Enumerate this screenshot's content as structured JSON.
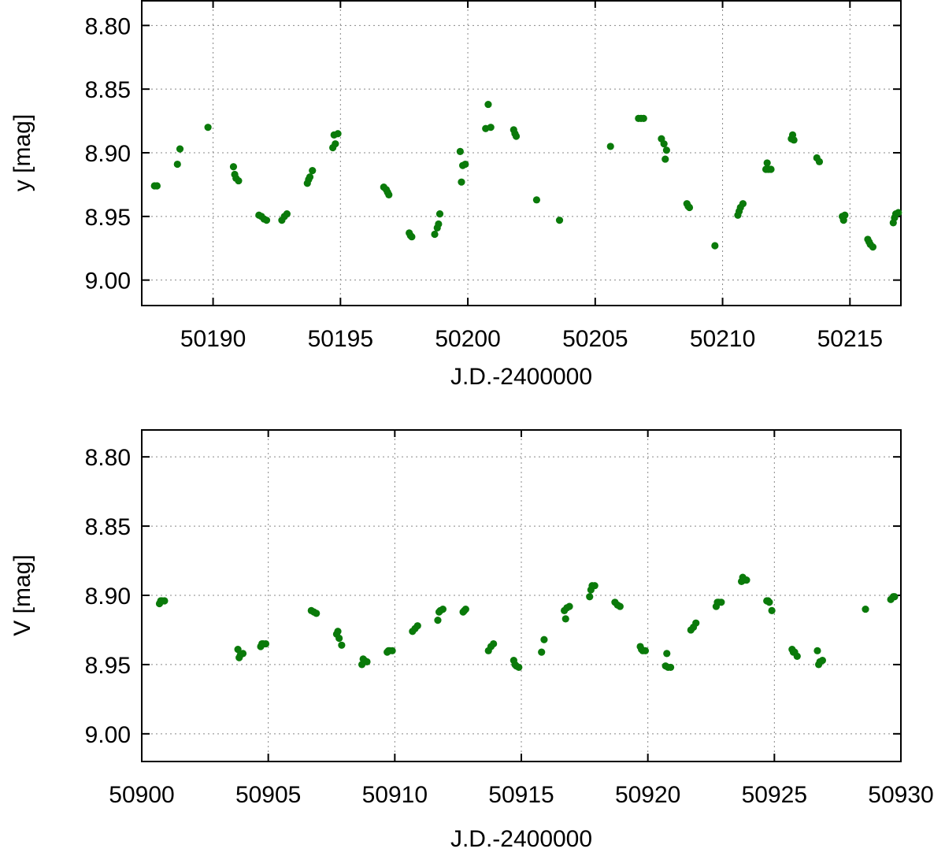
{
  "chart_data": [
    {
      "type": "scatter",
      "xlabel": "J.D.-2400000",
      "ylabel": "y [mag]",
      "xlim": [
        50187.2,
        50217.0
      ],
      "ylim": [
        9.02,
        8.78
      ],
      "y_inverted": true,
      "xticks": [
        50190,
        50195,
        50200,
        50205,
        50210,
        50215
      ],
      "yticks": [
        "8.80",
        "8.85",
        "8.90",
        "8.95",
        "9.00"
      ],
      "grid": true,
      "marker_color": "#0a7a0a",
      "series": [
        {
          "points": [
            [
              50187.7,
              8.926
            ],
            [
              50187.8,
              8.926
            ],
            [
              50188.6,
              8.909
            ],
            [
              50188.7,
              8.897
            ],
            [
              50189.8,
              8.88
            ],
            [
              50190.8,
              8.911
            ],
            [
              50190.85,
              8.917
            ],
            [
              50190.9,
              8.92
            ],
            [
              50191.0,
              8.922
            ],
            [
              50191.8,
              8.949
            ],
            [
              50191.9,
              8.95
            ],
            [
              50192.0,
              8.952
            ],
            [
              50192.1,
              8.953
            ],
            [
              50192.7,
              8.953
            ],
            [
              50192.8,
              8.95
            ],
            [
              50192.9,
              8.948
            ],
            [
              50193.7,
              8.924
            ],
            [
              50193.75,
              8.921
            ],
            [
              50193.8,
              8.919
            ],
            [
              50193.9,
              8.914
            ],
            [
              50194.7,
              8.896
            ],
            [
              50194.75,
              8.886
            ],
            [
              50194.8,
              8.893
            ],
            [
              50194.9,
              8.885
            ],
            [
              50196.7,
              8.927
            ],
            [
              50196.8,
              8.929
            ],
            [
              50196.85,
              8.931
            ],
            [
              50196.9,
              8.933
            ],
            [
              50197.7,
              8.963
            ],
            [
              50197.75,
              8.965
            ],
            [
              50197.8,
              8.966
            ],
            [
              50198.7,
              8.964
            ],
            [
              50198.8,
              8.959
            ],
            [
              50198.85,
              8.956
            ],
            [
              50198.9,
              8.948
            ],
            [
              50199.7,
              8.899
            ],
            [
              50199.75,
              8.923
            ],
            [
              50199.8,
              8.91
            ],
            [
              50199.9,
              8.909
            ],
            [
              50200.7,
              8.881
            ],
            [
              50200.8,
              8.862
            ],
            [
              50200.9,
              8.88
            ],
            [
              50201.8,
              8.882
            ],
            [
              50201.85,
              8.885
            ],
            [
              50201.9,
              8.887
            ],
            [
              50202.7,
              8.937
            ],
            [
              50203.6,
              8.953
            ],
            [
              50205.6,
              8.895
            ],
            [
              50206.7,
              8.873
            ],
            [
              50206.8,
              8.873
            ],
            [
              50206.9,
              8.873
            ],
            [
              50207.6,
              8.889
            ],
            [
              50207.7,
              8.893
            ],
            [
              50207.75,
              8.905
            ],
            [
              50207.8,
              8.898
            ],
            [
              50208.6,
              8.94
            ],
            [
              50208.65,
              8.942
            ],
            [
              50208.7,
              8.943
            ],
            [
              50209.7,
              8.973
            ],
            [
              50210.6,
              8.949
            ],
            [
              50210.65,
              8.946
            ],
            [
              50210.7,
              8.943
            ],
            [
              50210.8,
              8.94
            ],
            [
              50211.7,
              8.913
            ],
            [
              50211.75,
              8.908
            ],
            [
              50211.8,
              8.913
            ],
            [
              50211.9,
              8.913
            ],
            [
              50212.7,
              8.889
            ],
            [
              50212.75,
              8.886
            ],
            [
              50212.8,
              8.89
            ],
            [
              50213.7,
              8.904
            ],
            [
              50213.8,
              8.907
            ],
            [
              50214.7,
              8.95
            ],
            [
              50214.75,
              8.953
            ],
            [
              50214.8,
              8.949
            ],
            [
              50215.7,
              8.968
            ],
            [
              50215.75,
              8.97
            ],
            [
              50215.8,
              8.972
            ],
            [
              50215.9,
              8.974
            ],
            [
              50216.7,
              8.955
            ],
            [
              50216.75,
              8.951
            ],
            [
              50216.8,
              8.948
            ],
            [
              50216.9,
              8.947
            ]
          ]
        }
      ]
    },
    {
      "type": "scatter",
      "xlabel": "J.D.-2400000",
      "ylabel": "V [mag]",
      "xlim": [
        50900,
        50930
      ],
      "ylim": [
        9.02,
        8.78
      ],
      "y_inverted": true,
      "xticks": [
        50900,
        50905,
        50910,
        50915,
        50920,
        50925,
        50930
      ],
      "yticks": [
        "8.80",
        "8.85",
        "8.90",
        "8.95",
        "9.00"
      ],
      "grid": true,
      "marker_color": "#0a7a0a",
      "series": [
        {
          "points": [
            [
              50900.7,
              8.906
            ],
            [
              50900.75,
              8.904
            ],
            [
              50900.8,
              8.904
            ],
            [
              50900.9,
              8.904
            ],
            [
              50903.8,
              8.939
            ],
            [
              50903.85,
              8.945
            ],
            [
              50903.9,
              8.943
            ],
            [
              50904.0,
              8.942
            ],
            [
              50904.7,
              8.937
            ],
            [
              50904.75,
              8.935
            ],
            [
              50904.8,
              8.935
            ],
            [
              50904.9,
              8.935
            ],
            [
              50906.7,
              8.911
            ],
            [
              50906.8,
              8.912
            ],
            [
              50906.9,
              8.913
            ],
            [
              50907.7,
              8.928
            ],
            [
              50907.75,
              8.926
            ],
            [
              50907.8,
              8.931
            ],
            [
              50907.9,
              8.936
            ],
            [
              50908.7,
              8.95
            ],
            [
              50908.75,
              8.946
            ],
            [
              50908.8,
              8.947
            ],
            [
              50908.9,
              8.948
            ],
            [
              50909.7,
              8.941
            ],
            [
              50909.75,
              8.94
            ],
            [
              50909.8,
              8.94
            ],
            [
              50909.9,
              8.94
            ],
            [
              50910.7,
              8.926
            ],
            [
              50910.8,
              8.924
            ],
            [
              50910.9,
              8.922
            ],
            [
              50911.7,
              8.918
            ],
            [
              50911.75,
              8.912
            ],
            [
              50911.8,
              8.911
            ],
            [
              50911.9,
              8.91
            ],
            [
              50912.7,
              8.912
            ],
            [
              50912.75,
              8.911
            ],
            [
              50912.8,
              8.91
            ],
            [
              50913.7,
              8.94
            ],
            [
              50913.8,
              8.937
            ],
            [
              50913.9,
              8.935
            ],
            [
              50914.7,
              8.947
            ],
            [
              50914.75,
              8.95
            ],
            [
              50914.8,
              8.951
            ],
            [
              50914.9,
              8.952
            ],
            [
              50915.8,
              8.941
            ],
            [
              50915.9,
              8.932
            ],
            [
              50916.7,
              8.911
            ],
            [
              50916.75,
              8.917
            ],
            [
              50916.8,
              8.909
            ],
            [
              50916.9,
              8.908
            ],
            [
              50917.7,
              8.901
            ],
            [
              50917.75,
              8.896
            ],
            [
              50917.8,
              8.893
            ],
            [
              50917.9,
              8.893
            ],
            [
              50918.7,
              8.905
            ],
            [
              50918.8,
              8.907
            ],
            [
              50918.9,
              8.908
            ],
            [
              50919.7,
              8.937
            ],
            [
              50919.75,
              8.939
            ],
            [
              50919.8,
              8.94
            ],
            [
              50919.9,
              8.94
            ],
            [
              50920.7,
              8.951
            ],
            [
              50920.75,
              8.942
            ],
            [
              50920.8,
              8.952
            ],
            [
              50920.9,
              8.952
            ],
            [
              50921.7,
              8.925
            ],
            [
              50921.8,
              8.923
            ],
            [
              50921.9,
              8.92
            ],
            [
              50922.7,
              8.908
            ],
            [
              50922.75,
              8.905
            ],
            [
              50922.8,
              8.905
            ],
            [
              50922.9,
              8.905
            ],
            [
              50923.7,
              8.89
            ],
            [
              50923.75,
              8.887
            ],
            [
              50923.8,
              8.889
            ],
            [
              50923.9,
              8.889
            ],
            [
              50924.7,
              8.904
            ],
            [
              50924.75,
              8.904
            ],
            [
              50924.8,
              8.905
            ],
            [
              50924.9,
              8.911
            ],
            [
              50925.7,
              8.939
            ],
            [
              50925.75,
              8.941
            ],
            [
              50925.8,
              8.941
            ],
            [
              50925.9,
              8.944
            ],
            [
              50926.7,
              8.94
            ],
            [
              50926.75,
              8.95
            ],
            [
              50926.8,
              8.948
            ],
            [
              50926.9,
              8.947
            ],
            [
              50928.6,
              8.91
            ],
            [
              50929.6,
              8.903
            ],
            [
              50929.7,
              8.901
            ],
            [
              50929.75,
              8.901
            ]
          ]
        }
      ]
    }
  ]
}
